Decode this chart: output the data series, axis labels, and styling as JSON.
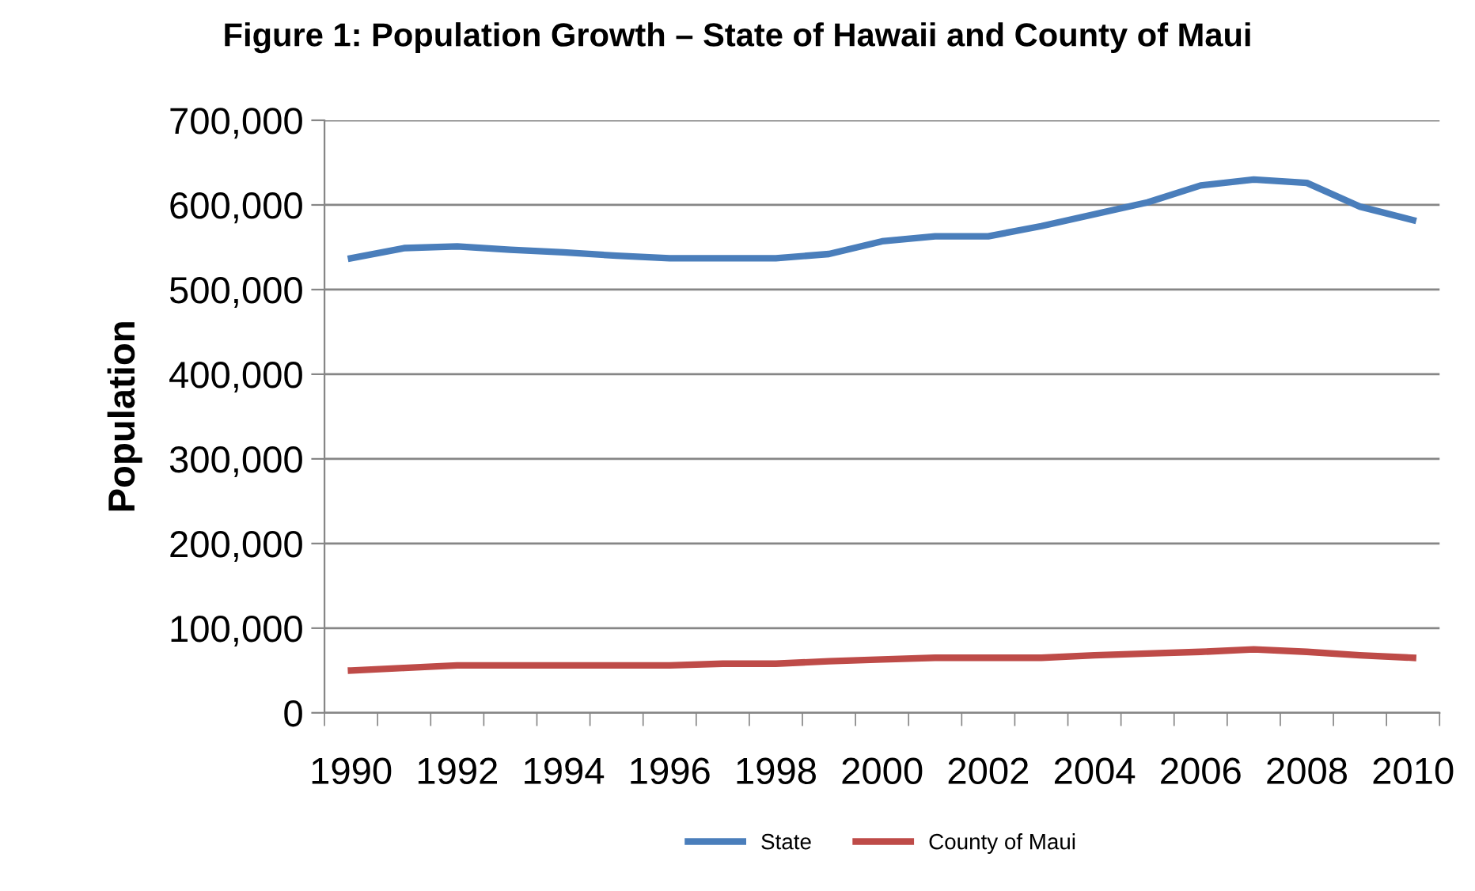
{
  "chart_data": {
    "type": "line",
    "title": "Figure 1: Population Growth – State of Hawaii and County of Maui",
    "ylabel": "Population",
    "categories": [
      "1990",
      null,
      "1992",
      null,
      "1994",
      null,
      "1996",
      null,
      "1998",
      null,
      "2000",
      null,
      "2002",
      null,
      "2004",
      null,
      "2006",
      null,
      "2008",
      null,
      "2010"
    ],
    "series": [
      {
        "name": "State",
        "color": "#4a7ebb",
        "values": [
          537000,
          549000,
          551000,
          547000,
          544000,
          540000,
          537000,
          537000,
          537000,
          542000,
          557000,
          563000,
          563000,
          575000,
          589000,
          603000,
          623000,
          630000,
          626000,
          598000,
          582000
        ]
      },
      {
        "name": "County of Maui",
        "color": "#be4b48",
        "values": [
          50000,
          53000,
          56000,
          56000,
          56000,
          56000,
          56000,
          58000,
          58000,
          61000,
          63000,
          65000,
          65000,
          65000,
          68000,
          70000,
          72000,
          75000,
          72000,
          68000,
          65000
        ]
      }
    ],
    "ylim": [
      0,
      700000
    ],
    "yticks": [
      {
        "value": 0,
        "label": "0"
      },
      {
        "value": 100000,
        "label": "100,000"
      },
      {
        "value": 200000,
        "label": "200,000"
      },
      {
        "value": 300000,
        "label": "300,000"
      },
      {
        "value": 400000,
        "label": "400,000"
      },
      {
        "value": 500000,
        "label": "500,000"
      },
      {
        "value": 600000,
        "label": "600,000"
      },
      {
        "value": 700000,
        "label": "700,000"
      }
    ],
    "grid": "y",
    "legend": "bottom",
    "marker": "none",
    "line_style": "solid"
  }
}
